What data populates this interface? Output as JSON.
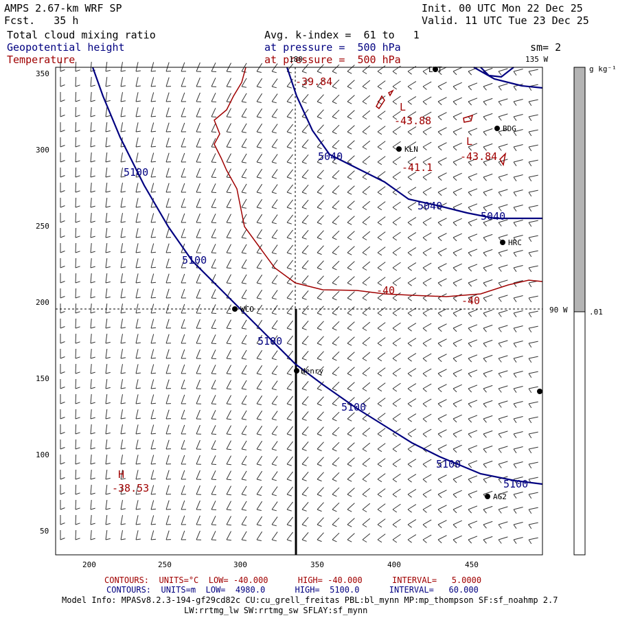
{
  "header": {
    "model_line": "AMPS 2.67-km WRF SP",
    "forecast_line": "Fcst.   35 h",
    "init_line": "Init. 00 UTC Mon 22 Dec 25",
    "valid_line": "Valid. 11 UTC Tue 23 Dec 25",
    "field1": "Total cloud mixing ratio",
    "field2": "Geopotential height",
    "field3": "Temperature",
    "avg_line": "Avg. k-index =  61 to   1",
    "pressure_line1": "at pressure =  500 hPa",
    "pressure_line2": "at pressure =  500 hPa",
    "smoothing": "sm= 2"
  },
  "map": {
    "x_ticks": [
      "200",
      "250",
      "300",
      "350",
      "400",
      "450"
    ],
    "y_ticks": [
      "350",
      "300",
      "250",
      "200",
      "150",
      "100",
      "50"
    ],
    "meridian_labels": {
      "top": "180",
      "top_right": "135 W",
      "right": "90 W"
    },
    "colors": {
      "height_contours": "#000080",
      "temperature_contours": "#a00000",
      "colorbar_fill": "#b4b4b4"
    },
    "stations": [
      {
        "name": "LVT"
      },
      {
        "name": "BDG"
      },
      {
        "name": "KLN"
      },
      {
        "name": "HRC"
      },
      {
        "name": "WCO"
      },
      {
        "name": "Henry"
      },
      {
        "name": "AG2"
      }
    ],
    "height_labels": [
      "5040",
      "5040",
      "5040",
      "5100",
      "5100",
      "5100",
      "5100",
      "5100",
      "5100"
    ],
    "temperature_labels": [
      "-39.84",
      "-43.88",
      "-41.1",
      "-43.84",
      "-40",
      "-40",
      "-38.53"
    ],
    "pressure_centers": [
      "L",
      "L",
      "H"
    ]
  },
  "colorbar": {
    "units": "g kg⁻¹",
    "tick": ".01"
  },
  "footer": {
    "temp_contours": "CONTOURS:  UNITS=°C  LOW= -40.000      HIGH= -40.000      INTERVAL=   5.0000",
    "height_contours": "CONTOURS:  UNITS=m  LOW=  4980.0      HIGH=  5100.0      INTERVAL=   60.000",
    "model_info": "Model Info: MPASv8.2.3-194-gf29cd82c CU:cu_grell_freitas PBL:bl_mynn MP:mp_thompson SF:sf_noahmp 2.7",
    "physics": "LW:rrtmg_lw SW:rrtmg_sw SFLAY:sf_mynn"
  }
}
